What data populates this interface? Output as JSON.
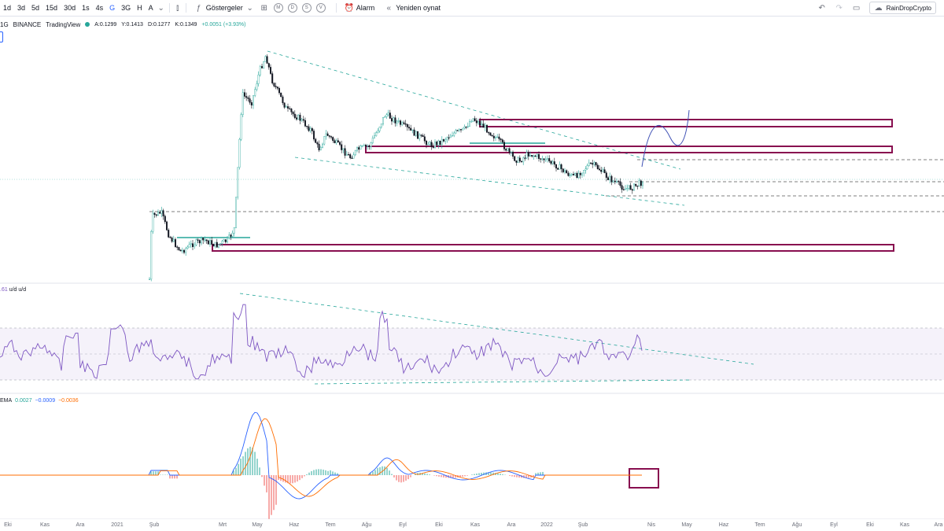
{
  "toolbar": {
    "timeframes": [
      "1d",
      "3d",
      "5d",
      "15d",
      "30d",
      "1s",
      "4s",
      "G",
      "3G",
      "H",
      "A"
    ],
    "active_timeframe": "G",
    "indicators_label": "Göstergeler",
    "template_circles": [
      "M",
      "D",
      "S",
      "V"
    ],
    "alarm_label": "Alarm",
    "replay_label": "Yeniden oynat",
    "username": "RainDropCrypto"
  },
  "legend": {
    "interval": "1G",
    "exchange": "BINANCE",
    "source": "TradingView",
    "open": "A:0.1299",
    "high": "Y:0.1413",
    "low": "D:0.1277",
    "close": "K:0.1349",
    "change": "+0.0051 (+3.93%)"
  },
  "rsi_label": {
    "value": ".61",
    "name": "u/d u/d"
  },
  "macd_label": {
    "name": "EMA",
    "v1": "0.0027",
    "v2": "−0.0009",
    "v3": "−0.0036"
  },
  "time_axis": [
    "Eki",
    "Kas",
    "Ara",
    "2021",
    "Şub",
    "Mrt",
    "May",
    "Haz",
    "Tem",
    "Ağu",
    "Eyl",
    "Eki",
    "Kas",
    "Ara",
    "2022",
    "Şub",
    "Nis",
    "May",
    "Haz",
    "Tem",
    "Ağu",
    "Eyl",
    "Eki",
    "Kas",
    "Ara"
  ],
  "colors": {
    "zone": "#880e4f",
    "trendline": "#26a69a",
    "rsi": "#7e57c2",
    "macd": "#2962ff",
    "signal": "#ff6d00",
    "up": "#26a69a",
    "down": "#ef5350",
    "projection": "#3f51b5"
  },
  "chart_data": {
    "type": "candlestick",
    "symbol": "BINANCE",
    "interval": "1G",
    "last_close": 0.1349,
    "rsi_band": [
      30,
      70
    ],
    "series_approx": [
      {
        "t": "2021-02",
        "price": 0.03
      },
      {
        "t": "2021-03",
        "price": 0.06
      },
      {
        "t": "2021-04",
        "price": 0.22
      },
      {
        "t": "2021-05",
        "price": 0.27
      },
      {
        "t": "2021-06",
        "price": 0.17
      },
      {
        "t": "2021-07",
        "price": 0.14
      },
      {
        "t": "2021-08",
        "price": 0.18
      },
      {
        "t": "2021-09",
        "price": 0.16
      },
      {
        "t": "2021-10",
        "price": 0.17
      },
      {
        "t": "2021-11",
        "price": 0.17
      },
      {
        "t": "2021-12",
        "price": 0.14
      },
      {
        "t": "2022-01",
        "price": 0.14
      },
      {
        "t": "2022-02",
        "price": 0.12
      },
      {
        "t": "2022-03",
        "price": 0.13
      }
    ]
  }
}
